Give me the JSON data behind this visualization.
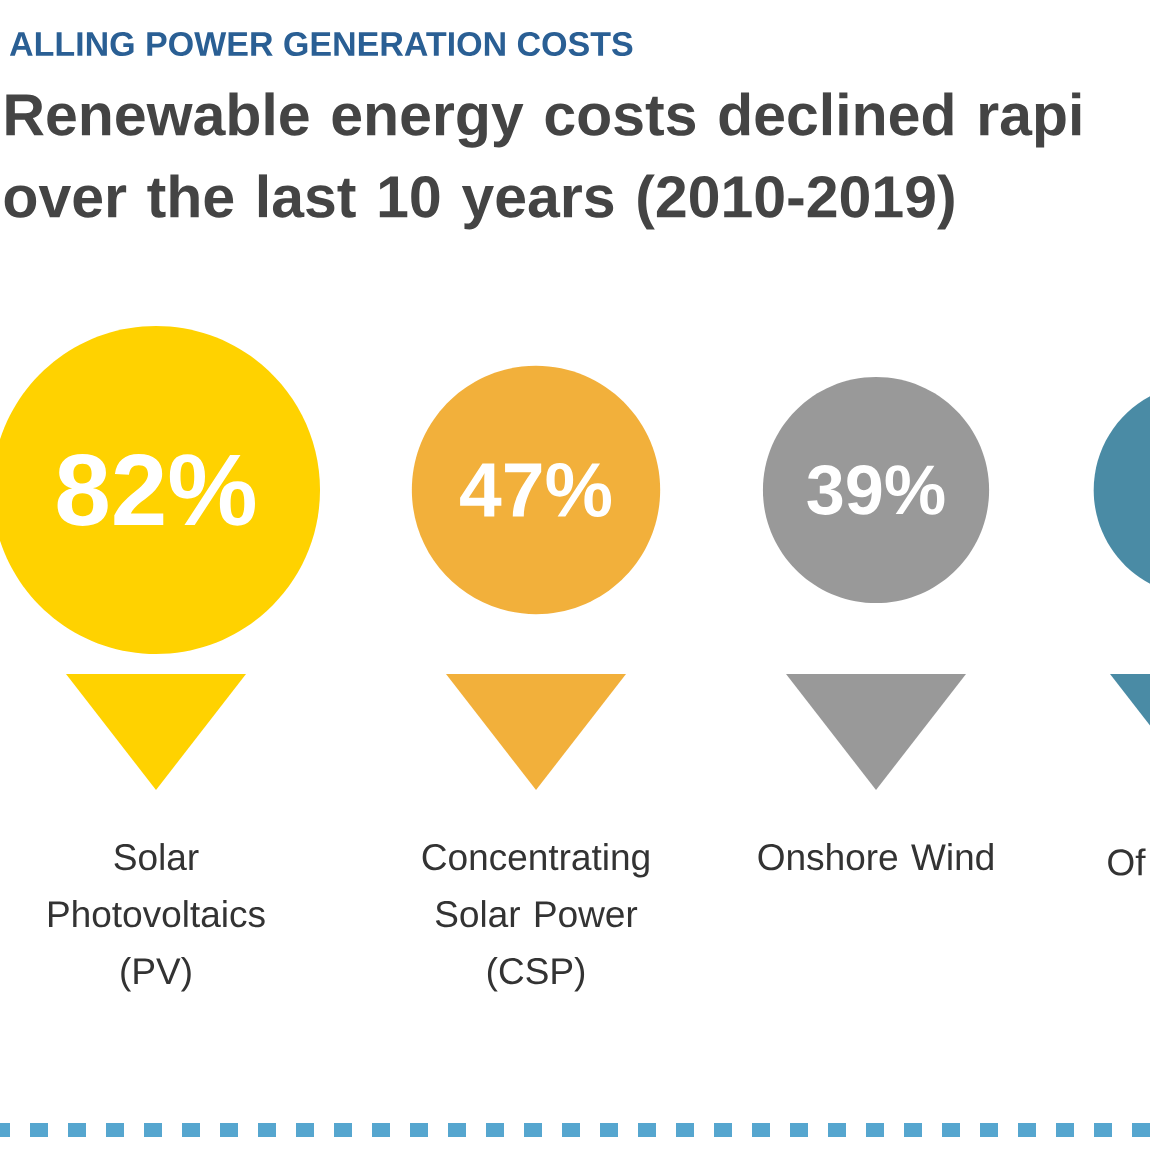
{
  "chart_data": {
    "type": "other",
    "subtitle": "ALLING POWER GENERATION COSTS",
    "title": "Renewable energy costs declined rapi over the last 10 years (2010-2019)",
    "categories": [
      "Solar Photovoltaics (PV)",
      "Concentrating Solar Power (CSP)",
      "Onshore Wind",
      "Of"
    ],
    "values": [
      82,
      47,
      39,
      null
    ],
    "value_labels": [
      "82%",
      "47%",
      "39%",
      null
    ],
    "colors": [
      "#ffd200",
      "#f2b03b",
      "#999999",
      "#4a8ba5"
    ]
  }
}
